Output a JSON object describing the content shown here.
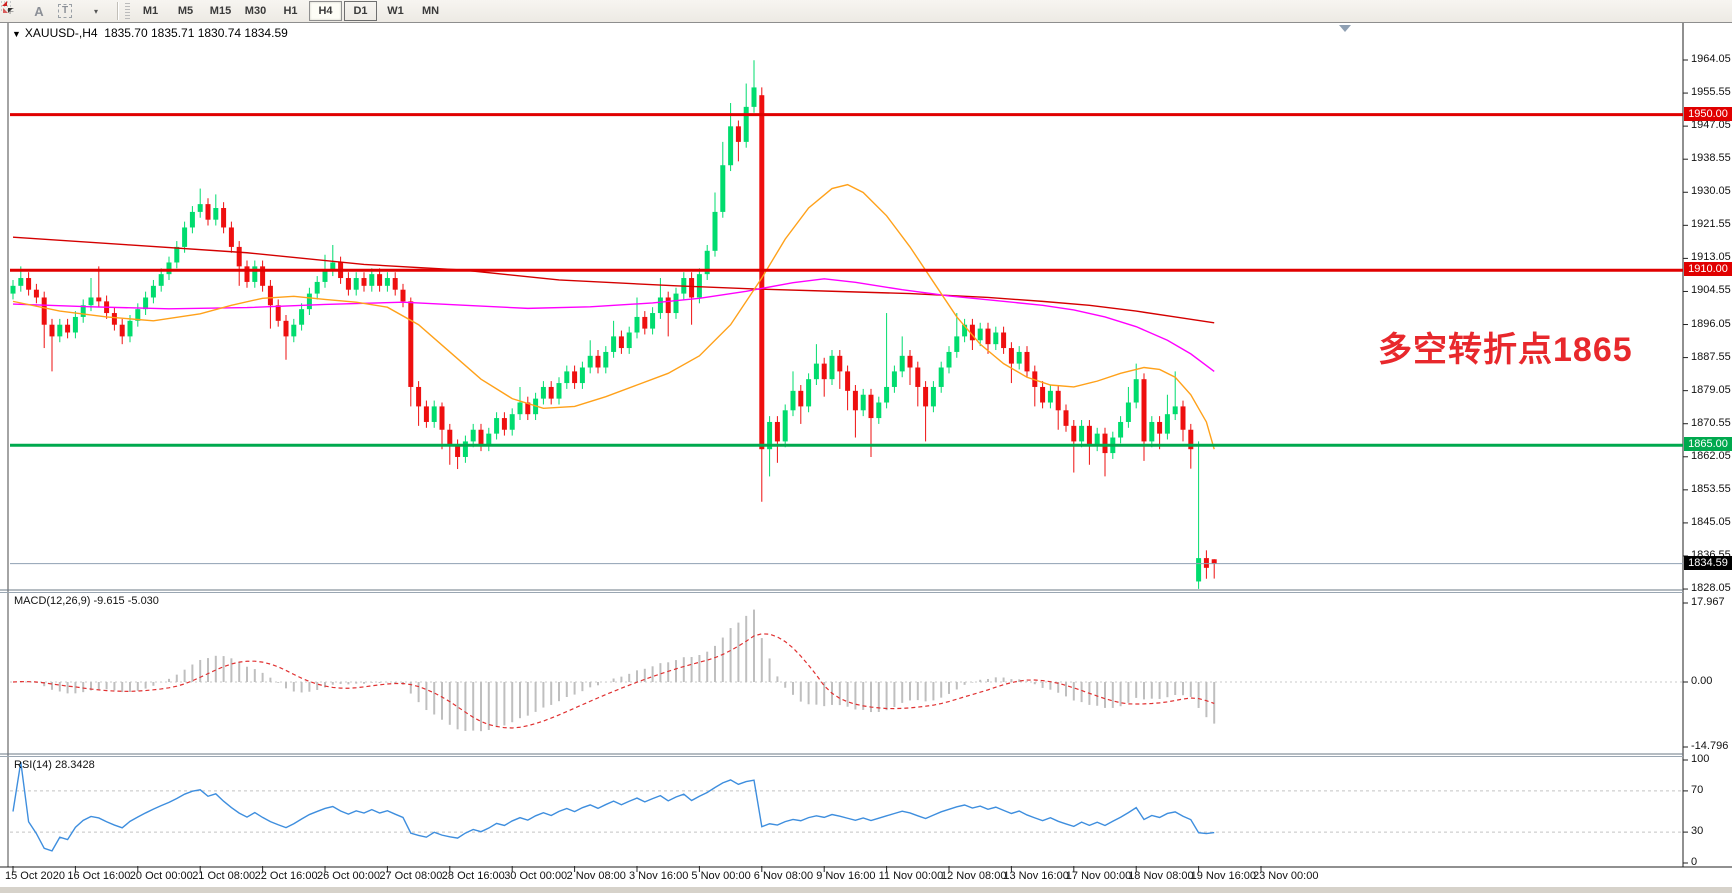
{
  "toolbar": {
    "icons": [
      {
        "name": "indicators-grid-icon",
        "glyph": "F"
      },
      {
        "name": "font-icon",
        "glyph": "A"
      },
      {
        "name": "text-label-icon",
        "glyph": "T"
      },
      {
        "name": "color-arrows-icon",
        "glyph": "▾"
      }
    ],
    "timeframes": [
      {
        "label": "M1",
        "state": "normal"
      },
      {
        "label": "M5",
        "state": "normal"
      },
      {
        "label": "M15",
        "state": "normal"
      },
      {
        "label": "M30",
        "state": "normal"
      },
      {
        "label": "H1",
        "state": "normal"
      },
      {
        "label": "H4",
        "state": "active"
      },
      {
        "label": "D1",
        "state": "outlined"
      },
      {
        "label": "W1",
        "state": "normal"
      },
      {
        "label": "MN",
        "state": "normal"
      }
    ]
  },
  "chart": {
    "title_symbol": "XAUUSD-,H4",
    "title_ohlc": "1835.70 1835.71 1830.74 1834.59",
    "annotation": {
      "text": "多空转折点1865",
      "color": "#e8282c"
    },
    "price_axis_ticks": [
      "1964.05",
      "1955.55",
      "1947.05",
      "1938.55",
      "1930.05",
      "1921.55",
      "1913.05",
      "1904.55",
      "1896.05",
      "1887.55",
      "1879.05",
      "1870.55",
      "1862.05",
      "1853.55",
      "1845.05",
      "1836.55",
      "1828.05"
    ],
    "hlines": [
      {
        "price": 1950.0,
        "label": "1950.00",
        "color": "#e00000",
        "kind": "resistance"
      },
      {
        "price": 1910.0,
        "label": "1910.00",
        "color": "#e00000",
        "kind": "resistance"
      },
      {
        "price": 1865.0,
        "label": "1865.00",
        "color": "#00a94e",
        "kind": "support"
      }
    ],
    "current_price": {
      "value": 1834.59,
      "label": "1834.59",
      "line_color": "#8fa0b3",
      "flag_color": "#000000"
    },
    "date_axis": [
      "15 Oct 2020",
      "16 Oct 16:00",
      "20 Oct 00:00",
      "21 Oct 08:00",
      "22 Oct 16:00",
      "26 Oct 00:00",
      "27 Oct 08:00",
      "28 Oct 16:00",
      "30 Oct 00:00",
      "2 Nov 08:00",
      "3 Nov 16:00",
      "5 Nov 00:00",
      "6 Nov 08:00",
      "9 Nov 16:00",
      "11 Nov 00:00",
      "12 Nov 08:00",
      "13 Nov 16:00",
      "17 Nov 00:00",
      "18 Nov 08:00",
      "19 Nov 16:00",
      "23 Nov 00:00"
    ],
    "colors": {
      "up": "#00dc6e",
      "down": "#ee0f0f",
      "ma_red": "#d40000",
      "ma_magenta": "#ff00ff",
      "ma_orange": "#ffa11a",
      "macd_hist": "#bfbfbf",
      "macd_signal": "#e03030",
      "rsi": "#3e8ede"
    }
  },
  "chart_data": {
    "type": "candlestick",
    "symbol": "XAUUSD",
    "timeframe": "H4",
    "price_range": [
      1828.05,
      1964.05
    ],
    "ohlc": [
      [
        1904,
        1907.5,
        1902.5,
        1906
      ],
      [
        1906,
        1911,
        1904.5,
        1908
      ],
      [
        1908,
        1909.5,
        1903.5,
        1905
      ],
      [
        1905,
        1906.5,
        1901.5,
        1903
      ],
      [
        1903,
        1904.5,
        1890,
        1896
      ],
      [
        1896,
        1897.5,
        1884,
        1893
      ],
      [
        1893,
        1897.5,
        1891.5,
        1896
      ],
      [
        1896,
        1897.5,
        1892.5,
        1894
      ],
      [
        1894,
        1899.5,
        1892.5,
        1898
      ],
      [
        1898,
        1902.5,
        1896.5,
        1901
      ],
      [
        1901,
        1908,
        1899.5,
        1903
      ],
      [
        1903,
        1911,
        1900.5,
        1902
      ],
      [
        1902,
        1903.5,
        1897.5,
        1899
      ],
      [
        1899,
        1900.5,
        1894.5,
        1896
      ],
      [
        1896,
        1897.5,
        1891,
        1893
      ],
      [
        1893,
        1898.5,
        1891.5,
        1897
      ],
      [
        1897,
        1901.5,
        1895.5,
        1900
      ],
      [
        1900,
        1904.5,
        1898.5,
        1903
      ],
      [
        1903,
        1907.5,
        1901.5,
        1906
      ],
      [
        1906,
        1910.5,
        1904.5,
        1909
      ],
      [
        1909,
        1913.5,
        1907.5,
        1912
      ],
      [
        1912,
        1917.5,
        1910.5,
        1916
      ],
      [
        1916,
        1922.5,
        1914.5,
        1921
      ],
      [
        1921,
        1926.5,
        1919.5,
        1925
      ],
      [
        1925,
        1931,
        1923.5,
        1927
      ],
      [
        1927,
        1928.5,
        1921.5,
        1923
      ],
      [
        1923,
        1929.5,
        1921.5,
        1926
      ],
      [
        1926,
        1927.5,
        1919.5,
        1921
      ],
      [
        1921,
        1922.5,
        1914.5,
        1916
      ],
      [
        1916,
        1917.5,
        1906,
        1911
      ],
      [
        1911,
        1912.5,
        1905.5,
        1907
      ],
      [
        1907,
        1912.5,
        1905.5,
        1911
      ],
      [
        1911,
        1912.5,
        1904.5,
        1906
      ],
      [
        1906,
        1907.5,
        1895,
        1901
      ],
      [
        1901,
        1902.5,
        1895.5,
        1897
      ],
      [
        1897,
        1898.5,
        1887,
        1893
      ],
      [
        1893,
        1897.5,
        1891.5,
        1896
      ],
      [
        1896,
        1901.5,
        1894.5,
        1900
      ],
      [
        1900,
        1905.5,
        1898.5,
        1904
      ],
      [
        1904,
        1908.5,
        1902.5,
        1907
      ],
      [
        1907,
        1914,
        1905.5,
        1910
      ],
      [
        1910,
        1916.5,
        1908.5,
        1912
      ],
      [
        1912,
        1913.5,
        1906.5,
        1908
      ],
      [
        1908,
        1909.5,
        1903.5,
        1905
      ],
      [
        1905,
        1909.5,
        1903.5,
        1908
      ],
      [
        1908,
        1909.5,
        1904.5,
        1906
      ],
      [
        1906,
        1910.5,
        1904.5,
        1909
      ],
      [
        1909,
        1910.5,
        1904.5,
        1906
      ],
      [
        1906,
        1909.5,
        1904.5,
        1908
      ],
      [
        1908,
        1909.5,
        1903.5,
        1905
      ],
      [
        1905,
        1906.5,
        1900.5,
        1902
      ],
      [
        1902,
        1903,
        1875,
        1880
      ],
      [
        1880,
        1881.5,
        1870,
        1875
      ],
      [
        1875,
        1876.5,
        1869.5,
        1871
      ],
      [
        1871,
        1876.5,
        1869.5,
        1875
      ],
      [
        1875,
        1876,
        1864,
        1869
      ],
      [
        1869,
        1870.5,
        1860,
        1865
      ],
      [
        1865,
        1866.5,
        1858.9,
        1862
      ],
      [
        1862,
        1867.5,
        1860.5,
        1866
      ],
      [
        1866,
        1870.5,
        1864.5,
        1869
      ],
      [
        1869,
        1870.5,
        1863.5,
        1865
      ],
      [
        1865,
        1869.5,
        1863.5,
        1868
      ],
      [
        1868,
        1873.5,
        1866.5,
        1872
      ],
      [
        1872,
        1873.5,
        1867.5,
        1869
      ],
      [
        1869,
        1874.5,
        1867.5,
        1873
      ],
      [
        1873,
        1880,
        1871.5,
        1876
      ],
      [
        1876,
        1877.5,
        1871.5,
        1873
      ],
      [
        1873,
        1878.5,
        1871.5,
        1877
      ],
      [
        1877,
        1881.5,
        1875.5,
        1880
      ],
      [
        1880,
        1881.5,
        1875.5,
        1877
      ],
      [
        1877,
        1882.5,
        1875.5,
        1881
      ],
      [
        1881,
        1885.5,
        1879.5,
        1884
      ],
      [
        1884,
        1885.5,
        1879.5,
        1881
      ],
      [
        1881,
        1886.5,
        1879.5,
        1885
      ],
      [
        1885,
        1892,
        1883.5,
        1888
      ],
      [
        1888,
        1889.5,
        1883.5,
        1885
      ],
      [
        1885,
        1890.5,
        1883.5,
        1889
      ],
      [
        1889,
        1897,
        1887.5,
        1893
      ],
      [
        1893,
        1894.5,
        1888.5,
        1890
      ],
      [
        1890,
        1895.5,
        1888.5,
        1894
      ],
      [
        1894,
        1903,
        1892.5,
        1898
      ],
      [
        1898,
        1899.5,
        1893.5,
        1895
      ],
      [
        1895,
        1900.5,
        1893.5,
        1899
      ],
      [
        1899,
        1908,
        1897.5,
        1903
      ],
      [
        1903,
        1904.5,
        1893,
        1899
      ],
      [
        1899,
        1905.5,
        1897.5,
        1904
      ],
      [
        1904,
        1909.5,
        1902.5,
        1908
      ],
      [
        1908,
        1909.5,
        1896,
        1903
      ],
      [
        1903,
        1910.5,
        1901.5,
        1909
      ],
      [
        1909,
        1916.5,
        1907.5,
        1915
      ],
      [
        1915,
        1930,
        1913.5,
        1925
      ],
      [
        1925,
        1943,
        1923.5,
        1937
      ],
      [
        1937,
        1953,
        1935.5,
        1947
      ],
      [
        1947,
        1948.5,
        1938,
        1943
      ],
      [
        1943,
        1958,
        1941.5,
        1952
      ],
      [
        1952,
        1964,
        1950.5,
        1957
      ],
      [
        1955,
        1957,
        1850.5,
        1864
      ],
      [
        1864,
        1872.5,
        1857,
        1871
      ],
      [
        1871,
        1872.5,
        1860.5,
        1866
      ],
      [
        1866,
        1875.5,
        1864.5,
        1874
      ],
      [
        1874,
        1884,
        1872.5,
        1879
      ],
      [
        1879,
        1880.5,
        1870.5,
        1875
      ],
      [
        1875,
        1883.5,
        1873.5,
        1882
      ],
      [
        1882,
        1891,
        1880.5,
        1886
      ],
      [
        1886,
        1887.5,
        1877.5,
        1882
      ],
      [
        1882,
        1889.5,
        1880.5,
        1888
      ],
      [
        1888,
        1889.5,
        1879.5,
        1884
      ],
      [
        1884,
        1885.5,
        1874,
        1879
      ],
      [
        1879,
        1880.5,
        1867,
        1874
      ],
      [
        1874,
        1879.5,
        1872.5,
        1878
      ],
      [
        1878,
        1879.5,
        1862,
        1872
      ],
      [
        1872,
        1877.5,
        1870.5,
        1876
      ],
      [
        1876,
        1899,
        1874.5,
        1880
      ],
      [
        1880,
        1885.5,
        1878.5,
        1884
      ],
      [
        1884,
        1893,
        1882.5,
        1888
      ],
      [
        1888,
        1889.5,
        1880.5,
        1885
      ],
      [
        1885,
        1886.5,
        1875,
        1880
      ],
      [
        1880,
        1881.5,
        1866,
        1875
      ],
      [
        1875,
        1881.5,
        1873.5,
        1880
      ],
      [
        1880,
        1886.5,
        1878.5,
        1885
      ],
      [
        1885,
        1890.5,
        1883.5,
        1889
      ],
      [
        1889,
        1899,
        1887.5,
        1893
      ],
      [
        1893,
        1897.5,
        1891.5,
        1896
      ],
      [
        1896,
        1897.5,
        1889.5,
        1892
      ],
      [
        1892,
        1896.5,
        1890.5,
        1895
      ],
      [
        1895,
        1896.5,
        1888.5,
        1891
      ],
      [
        1891,
        1895.5,
        1889.5,
        1894
      ],
      [
        1894,
        1895.5,
        1888.5,
        1890
      ],
      [
        1890,
        1891.5,
        1881,
        1886
      ],
      [
        1886,
        1890.5,
        1884.5,
        1889
      ],
      [
        1889,
        1890.5,
        1882.5,
        1884
      ],
      [
        1884,
        1885.5,
        1875,
        1880
      ],
      [
        1880,
        1881.5,
        1874.5,
        1876
      ],
      [
        1876,
        1880.5,
        1874.5,
        1879
      ],
      [
        1879,
        1880.5,
        1869,
        1874
      ],
      [
        1874,
        1875.5,
        1868.5,
        1870
      ],
      [
        1870,
        1871.5,
        1858,
        1866
      ],
      [
        1866,
        1871.5,
        1864.5,
        1870
      ],
      [
        1870,
        1871.5,
        1860,
        1865
      ],
      [
        1865,
        1869.5,
        1863.5,
        1868
      ],
      [
        1868,
        1869.5,
        1857,
        1863
      ],
      [
        1863,
        1868.5,
        1861.5,
        1867
      ],
      [
        1867,
        1872.5,
        1865.5,
        1871
      ],
      [
        1871,
        1880,
        1869.5,
        1876
      ],
      [
        1876,
        1886,
        1874.5,
        1882
      ],
      [
        1882,
        1883.5,
        1861,
        1866
      ],
      [
        1866,
        1872.5,
        1864.5,
        1871
      ],
      [
        1871,
        1872.5,
        1864,
        1868
      ],
      [
        1868,
        1878,
        1866.5,
        1873
      ],
      [
        1873,
        1884,
        1871.5,
        1875
      ],
      [
        1875,
        1876.5,
        1866,
        1869
      ],
      [
        1869,
        1870.5,
        1859,
        1864
      ],
      [
        1830,
        1866,
        1828.1,
        1836
      ],
      [
        1836,
        1838,
        1830.7,
        1833.5
      ],
      [
        1835.7,
        1835.71,
        1830.74,
        1834.59
      ]
    ],
    "ma_red_anchors": [
      [
        0,
        1918.5
      ],
      [
        15,
        1916.5
      ],
      [
        30,
        1914.5
      ],
      [
        45,
        1911.5
      ],
      [
        58,
        1910
      ],
      [
        70,
        1907.5
      ],
      [
        85,
        1906
      ],
      [
        95,
        1905.2
      ],
      [
        105,
        1904.6
      ],
      [
        115,
        1904
      ],
      [
        125,
        1903
      ],
      [
        132,
        1902
      ],
      [
        138,
        1901
      ],
      [
        144,
        1899.5
      ],
      [
        149,
        1898
      ],
      [
        154,
        1896.5
      ]
    ],
    "ma_magenta_anchors": [
      [
        0,
        1901.3
      ],
      [
        10,
        1900.6
      ],
      [
        20,
        1900.1
      ],
      [
        30,
        1900.4
      ],
      [
        40,
        1901.2
      ],
      [
        50,
        1901.8
      ],
      [
        58,
        1901
      ],
      [
        66,
        1900.2
      ],
      [
        74,
        1900.6
      ],
      [
        82,
        1901.6
      ],
      [
        88,
        1902.8
      ],
      [
        94,
        1904.6
      ],
      [
        100,
        1906.8
      ],
      [
        104,
        1907.8
      ],
      [
        108,
        1906.9
      ],
      [
        114,
        1905
      ],
      [
        120,
        1903.4
      ],
      [
        126,
        1902.2
      ],
      [
        132,
        1901
      ],
      [
        136,
        1899.8
      ],
      [
        140,
        1898
      ],
      [
        144,
        1895.5
      ],
      [
        148,
        1892
      ],
      [
        151,
        1888.5
      ],
      [
        154,
        1884
      ]
    ],
    "ma_orange_anchors": [
      [
        0,
        1902
      ],
      [
        6,
        1899.5
      ],
      [
        12,
        1898
      ],
      [
        18,
        1897
      ],
      [
        24,
        1898.8
      ],
      [
        28,
        1901
      ],
      [
        32,
        1902.8
      ],
      [
        36,
        1903.3
      ],
      [
        40,
        1902.5
      ],
      [
        44,
        1901.8
      ],
      [
        48,
        1900.5
      ],
      [
        52,
        1896
      ],
      [
        56,
        1889
      ],
      [
        60,
        1882
      ],
      [
        64,
        1877
      ],
      [
        68,
        1874.5
      ],
      [
        72,
        1875
      ],
      [
        76,
        1877.5
      ],
      [
        80,
        1880.5
      ],
      [
        84,
        1883.5
      ],
      [
        88,
        1888
      ],
      [
        92,
        1896
      ],
      [
        96,
        1908
      ],
      [
        99,
        1918
      ],
      [
        102,
        1926
      ],
      [
        105,
        1931
      ],
      [
        107,
        1932
      ],
      [
        109,
        1930
      ],
      [
        112,
        1924
      ],
      [
        115,
        1916
      ],
      [
        118,
        1907
      ],
      [
        121,
        1898
      ],
      [
        124,
        1891
      ],
      [
        127,
        1886
      ],
      [
        130,
        1882.5
      ],
      [
        133,
        1880.5
      ],
      [
        136,
        1880
      ],
      [
        139,
        1881.5
      ],
      [
        142,
        1883.5
      ],
      [
        145,
        1885
      ],
      [
        147,
        1884.5
      ],
      [
        149,
        1882.5
      ],
      [
        151,
        1878
      ],
      [
        153,
        1871
      ],
      [
        154,
        1864
      ]
    ],
    "macd": {
      "label": "MACD(12,26,9)",
      "values_text": "-9.615 -5.030",
      "axis": [
        "17.967",
        "0.00",
        "-14.796"
      ],
      "params": [
        12,
        26,
        9
      ]
    },
    "rsi": {
      "label": "RSI(14)",
      "value_text": "28.3428",
      "axis": [
        "100",
        "70",
        "30",
        "0"
      ],
      "levels": [
        70,
        30
      ],
      "period": 14
    }
  }
}
